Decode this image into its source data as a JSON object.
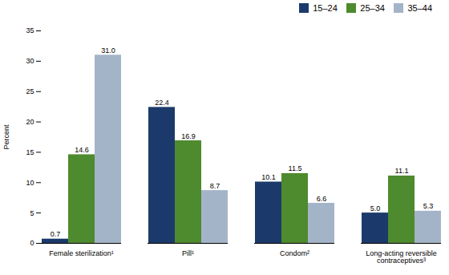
{
  "chart_data": {
    "type": "bar",
    "categories": [
      "Female sterilization¹",
      "Pill¹",
      "Condom²",
      "Long-acting reversible\ncontraceptives³"
    ],
    "series": [
      {
        "name": "15–24",
        "color": "#1b3a6b",
        "values": [
          0.7,
          22.4,
          10.1,
          5.0
        ],
        "value_labels": [
          "0.7",
          "22.4",
          "10.1",
          "5.0"
        ]
      },
      {
        "name": "25–34",
        "color": "#4e8a2e",
        "values": [
          14.6,
          16.9,
          11.5,
          11.1
        ],
        "value_labels": [
          "14.6",
          "16.9",
          "11.5",
          "11.1"
        ]
      },
      {
        "name": "35–44",
        "color": "#a4b4c8",
        "values": [
          31.0,
          8.7,
          6.6,
          5.3
        ],
        "value_labels": [
          "31.0",
          "8.7",
          "6.6",
          "5.3"
        ]
      }
    ],
    "ylabel": "Percent",
    "ylim": [
      0,
      35
    ],
    "yticks": [
      0,
      5,
      10,
      15,
      20,
      25,
      30,
      35
    ],
    "data_labels": true,
    "legend": "upper right",
    "grid": false
  }
}
